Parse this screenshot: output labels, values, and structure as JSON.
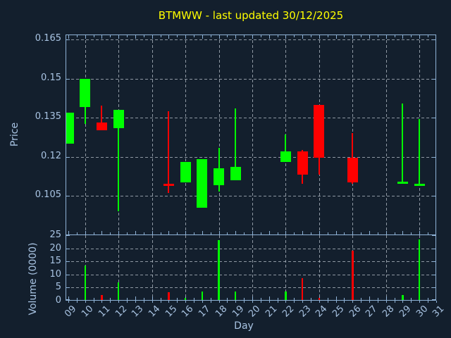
{
  "title": "BTMWW - last updated 30/12/2025",
  "axes": {
    "price_label": "Price",
    "volume_label": "Volume (0000)",
    "x_label": "Day"
  },
  "colors": {
    "background": "#131f2d",
    "frame": "#8fb2d6",
    "text": "#a9c4e3",
    "grid": "#c2cbd5",
    "title": "#ffff00",
    "up": "#00ff00",
    "down": "#ff0000"
  },
  "chart_data": {
    "type": "candlestick+volume-bar",
    "title": "BTMWW - last updated 30/12/2025",
    "xlabel": "Day",
    "ylabel_price": "Price",
    "ylabel_volume": "Volume (0000)",
    "x_ticks": [
      "09",
      "10",
      "11",
      "12",
      "13",
      "14",
      "15",
      "16",
      "17",
      "18",
      "19",
      "20",
      "21",
      "22",
      "23",
      "24",
      "25",
      "26",
      "27",
      "28",
      "29",
      "30",
      "31"
    ],
    "price_ticks": [
      0.105,
      0.12,
      0.135,
      0.15,
      0.165
    ],
    "price_ylim": [
      0.09,
      0.1665
    ],
    "volume_ticks": [
      0,
      5,
      10,
      15,
      20,
      25
    ],
    "volume_ylim": [
      0,
      25
    ],
    "grid": "dashed; horizontal at every y tick, vertical at even days",
    "grid_days": [
      10,
      12,
      14,
      16,
      18,
      20,
      22,
      24,
      26,
      28,
      30
    ],
    "candles": [
      {
        "day": 9,
        "open": 0.125,
        "high": 0.137,
        "low": 0.125,
        "close": 0.137,
        "volume": 0
      },
      {
        "day": 10,
        "open": 0.139,
        "high": 0.15,
        "low": 0.1325,
        "close": 0.15,
        "volume": 13.5
      },
      {
        "day": 11,
        "open": 0.133,
        "high": 0.1395,
        "low": 0.13,
        "close": 0.13,
        "volume": 2
      },
      {
        "day": 12,
        "open": 0.131,
        "high": 0.138,
        "low": 0.099,
        "close": 0.138,
        "volume": 7
      },
      {
        "day": 15,
        "open": 0.1095,
        "high": 0.1375,
        "low": 0.106,
        "close": 0.109,
        "volume": 3
      },
      {
        "day": 16,
        "open": 0.11,
        "high": 0.118,
        "low": 0.11,
        "close": 0.118,
        "volume": 1
      },
      {
        "day": 17,
        "open": 0.1005,
        "high": 0.119,
        "low": 0.1005,
        "close": 0.119,
        "volume": 3.5
      },
      {
        "day": 18,
        "open": 0.109,
        "high": 0.1235,
        "low": 0.1065,
        "close": 0.1155,
        "volume": 23
      },
      {
        "day": 19,
        "open": 0.111,
        "high": 0.1385,
        "low": 0.111,
        "close": 0.116,
        "volume": 3.5
      },
      {
        "day": 22,
        "open": 0.118,
        "high": 0.1285,
        "low": 0.118,
        "close": 0.122,
        "volume": 3.5
      },
      {
        "day": 23,
        "open": 0.122,
        "high": 0.1225,
        "low": 0.1095,
        "close": 0.113,
        "volume": 8.5
      },
      {
        "day": 24,
        "open": 0.14,
        "high": 0.14,
        "low": 0.113,
        "close": 0.1195,
        "volume": 1
      },
      {
        "day": 26,
        "open": 0.1195,
        "high": 0.129,
        "low": 0.1095,
        "close": 0.11,
        "volume": 19
      },
      {
        "day": 29,
        "open": 0.1095,
        "high": 0.1405,
        "low": 0.1095,
        "close": 0.1105,
        "volume": 2
      },
      {
        "day": 30,
        "open": 0.109,
        "high": 0.1345,
        "low": 0.109,
        "close": 0.1095,
        "volume": 23.5
      }
    ]
  }
}
